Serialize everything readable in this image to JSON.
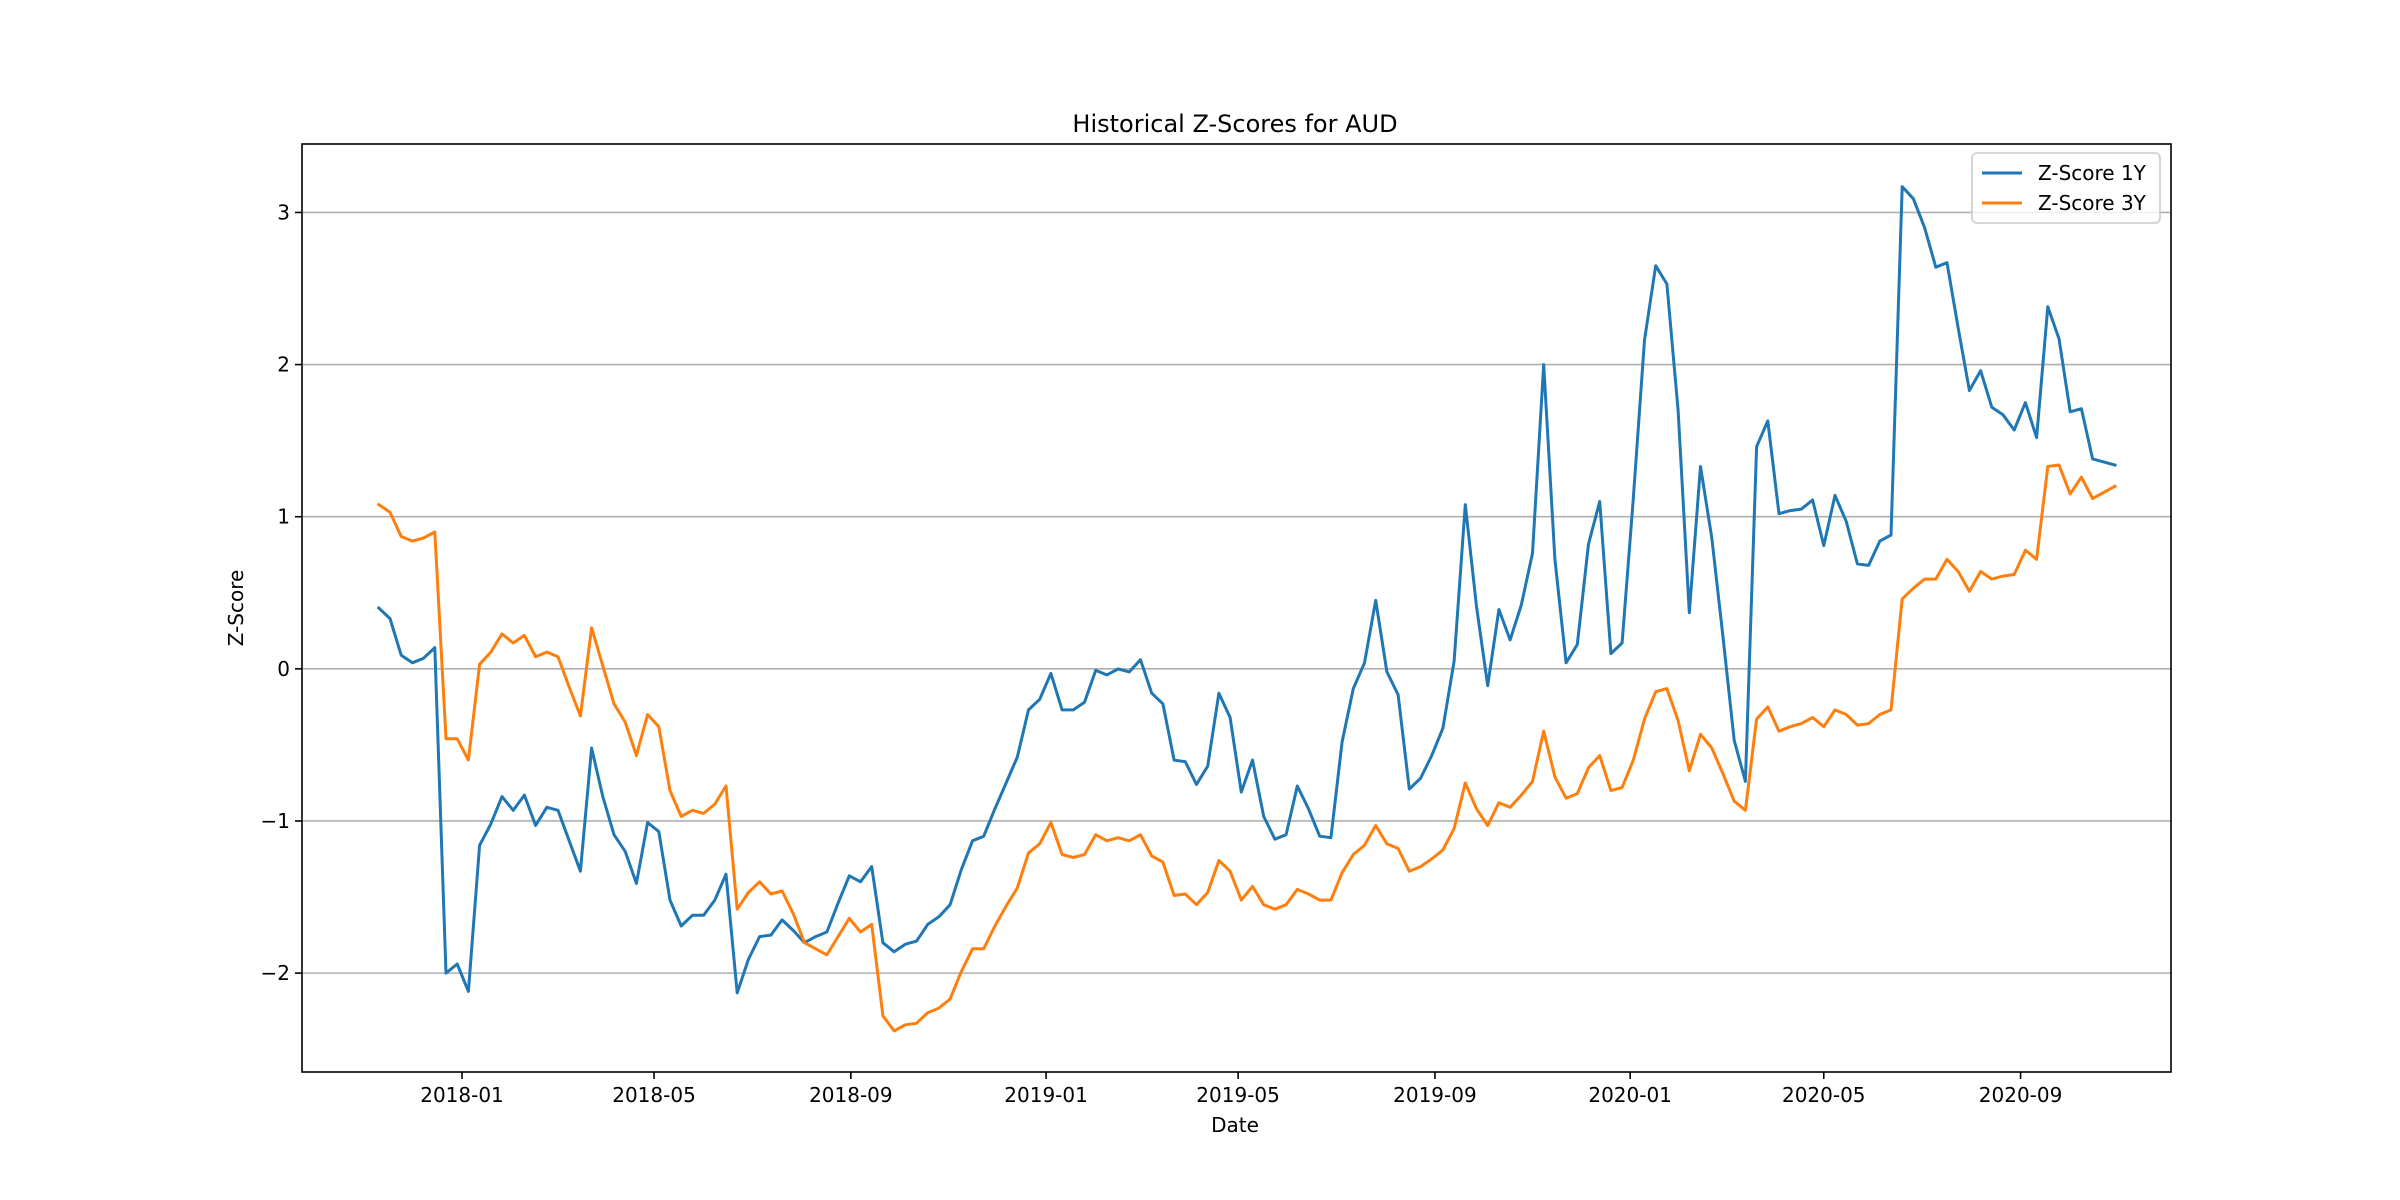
{
  "chart_data": {
    "type": "line",
    "title": "Historical Z-Scores for AUD",
    "xlabel": "Date",
    "ylabel": "Z-Score",
    "xlim": [
      "2017-09-23",
      "2020-12-04"
    ],
    "ylim": [
      -2.65,
      3.45
    ],
    "x_ticks": [
      "2018-01",
      "2018-05",
      "2018-09",
      "2019-01",
      "2019-05",
      "2019-09",
      "2020-01",
      "2020-05",
      "2020-09"
    ],
    "y_ticks": [
      -2,
      -1,
      0,
      1,
      2,
      3
    ],
    "y_tick_labels": [
      "−2",
      "−1",
      "0",
      "1",
      "2",
      "3"
    ],
    "grid": "horizontal",
    "legend_position": "top-right",
    "colors": {
      "z1y": "#1f77b4",
      "z3y": "#ff7f0e",
      "grid": "#b0b0b0"
    },
    "x": [
      "2017-11-10",
      "2017-11-17",
      "2017-11-24",
      "2017-12-01",
      "2017-12-08",
      "2017-12-15",
      "2017-12-22",
      "2017-12-29",
      "2018-01-05",
      "2018-01-12",
      "2018-01-19",
      "2018-01-26",
      "2018-02-02",
      "2018-02-09",
      "2018-02-16",
      "2018-02-23",
      "2018-03-02",
      "2018-03-09",
      "2018-03-16",
      "2018-03-23",
      "2018-03-30",
      "2018-04-06",
      "2018-04-13",
      "2018-04-20",
      "2018-04-27",
      "2018-05-04",
      "2018-05-11",
      "2018-05-18",
      "2018-05-25",
      "2018-06-01",
      "2018-06-08",
      "2018-06-15",
      "2018-06-22",
      "2018-06-29",
      "2018-07-06",
      "2018-07-13",
      "2018-07-20",
      "2018-07-27",
      "2018-08-03",
      "2018-08-10",
      "2018-08-17",
      "2018-08-24",
      "2018-08-31",
      "2018-09-07",
      "2018-09-14",
      "2018-09-21",
      "2018-09-28",
      "2018-10-05",
      "2018-10-12",
      "2018-10-19",
      "2018-10-26",
      "2018-11-02",
      "2018-11-09",
      "2018-11-16",
      "2018-11-23",
      "2018-11-30",
      "2018-12-07",
      "2018-12-14",
      "2018-12-21",
      "2018-12-28",
      "2019-01-04",
      "2019-01-11",
      "2019-01-18",
      "2019-01-25",
      "2019-02-01",
      "2019-02-08",
      "2019-02-15",
      "2019-02-22",
      "2019-03-01",
      "2019-03-08",
      "2019-03-15",
      "2019-03-22",
      "2019-03-29",
      "2019-04-05",
      "2019-04-12",
      "2019-04-19",
      "2019-04-26",
      "2019-05-03",
      "2019-05-10",
      "2019-05-17",
      "2019-05-24",
      "2019-05-31",
      "2019-06-07",
      "2019-06-14",
      "2019-06-21",
      "2019-06-28",
      "2019-07-05",
      "2019-07-12",
      "2019-07-19",
      "2019-07-26",
      "2019-08-02",
      "2019-08-09",
      "2019-08-16",
      "2019-08-23",
      "2019-08-30",
      "2019-09-06",
      "2019-09-13",
      "2019-09-20",
      "2019-09-27",
      "2019-10-04",
      "2019-10-11",
      "2019-10-18",
      "2019-10-25",
      "2019-11-01",
      "2019-11-08",
      "2019-11-15",
      "2019-11-22",
      "2019-11-29",
      "2019-12-06",
      "2019-12-13",
      "2019-12-20",
      "2019-12-27",
      "2020-01-03",
      "2020-01-10",
      "2020-01-17",
      "2020-01-24",
      "2020-01-31",
      "2020-02-07",
      "2020-02-14",
      "2020-02-21",
      "2020-02-28",
      "2020-03-06",
      "2020-03-13",
      "2020-03-20",
      "2020-03-27",
      "2020-04-03",
      "2020-04-10",
      "2020-04-17",
      "2020-04-24",
      "2020-05-01",
      "2020-05-08",
      "2020-05-15",
      "2020-05-22",
      "2020-05-29",
      "2020-06-05",
      "2020-06-12",
      "2020-06-19",
      "2020-06-26",
      "2020-07-03",
      "2020-07-10",
      "2020-07-17",
      "2020-07-24",
      "2020-07-31",
      "2020-08-07",
      "2020-08-14",
      "2020-08-21",
      "2020-08-28",
      "2020-09-04",
      "2020-09-11",
      "2020-09-18",
      "2020-09-25",
      "2020-10-02",
      "2020-10-09",
      "2020-10-16",
      "2020-10-30"
    ],
    "series": [
      {
        "name": "Z-Score 1Y",
        "values": [
          0.4,
          0.33,
          0.09,
          0.04,
          0.07,
          0.14,
          -2.0,
          -1.94,
          -2.12,
          -1.16,
          -1.02,
          -0.84,
          -0.93,
          -0.83,
          -1.03,
          -0.91,
          -0.93,
          -1.13,
          -1.33,
          -0.52,
          -0.84,
          -1.09,
          -1.2,
          -1.41,
          -1.01,
          -1.07,
          -1.52,
          -1.69,
          -1.62,
          -1.62,
          -1.52,
          -1.35,
          -2.13,
          -1.91,
          -1.76,
          -1.75,
          -1.65,
          -1.72,
          -1.8,
          -1.76,
          -1.73,
          -1.54,
          -1.36,
          -1.4,
          -1.3,
          -1.8,
          -1.86,
          -1.81,
          -1.79,
          -1.68,
          -1.63,
          -1.55,
          -1.32,
          -1.13,
          -1.1,
          -0.92,
          -0.75,
          -0.58,
          -0.27,
          -0.2,
          -0.03,
          -0.27,
          -0.27,
          -0.22,
          -0.01,
          -0.04,
          0.0,
          -0.02,
          0.06,
          -0.16,
          -0.23,
          -0.6,
          -0.61,
          -0.76,
          -0.64,
          -0.16,
          -0.32,
          -0.81,
          -0.6,
          -0.97,
          -1.12,
          -1.09,
          -0.77,
          -0.92,
          -1.1,
          -1.11,
          -0.48,
          -0.13,
          0.04,
          0.45,
          -0.02,
          -0.17,
          -0.79,
          -0.72,
          -0.57,
          -0.39,
          0.05,
          1.08,
          0.41,
          -0.11,
          0.39,
          0.19,
          0.42,
          0.76,
          2.0,
          0.72,
          0.04,
          0.16,
          0.82,
          1.1,
          0.1,
          0.17,
          1.12,
          2.16,
          2.65,
          2.53,
          1.7,
          0.37,
          1.33,
          0.86,
          0.21,
          -0.47,
          -0.74,
          1.46,
          1.63,
          1.02,
          1.04,
          1.05,
          1.11,
          0.81,
          1.14,
          0.97,
          0.69,
          0.68,
          0.84,
          0.88,
          3.17,
          3.09,
          2.9,
          2.64,
          2.67,
          2.24,
          1.83,
          1.96,
          1.72,
          1.67,
          1.57,
          1.75,
          1.52,
          2.38,
          2.17,
          1.69,
          1.71,
          1.38,
          1.34
        ]
      },
      {
        "name": "Z-Score 3Y",
        "values": [
          1.08,
          1.03,
          0.87,
          0.84,
          0.86,
          0.9,
          -0.46,
          -0.46,
          -0.6,
          0.03,
          0.11,
          0.23,
          0.17,
          0.22,
          0.08,
          0.11,
          0.08,
          -0.12,
          -0.31,
          0.27,
          0.02,
          -0.23,
          -0.35,
          -0.57,
          -0.3,
          -0.38,
          -0.8,
          -0.97,
          -0.93,
          -0.95,
          -0.89,
          -0.77,
          -1.58,
          -1.47,
          -1.4,
          -1.48,
          -1.46,
          -1.61,
          -1.8,
          -1.84,
          -1.88,
          -1.76,
          -1.64,
          -1.73,
          -1.68,
          -2.28,
          -2.38,
          -2.34,
          -2.33,
          -2.26,
          -2.23,
          -2.17,
          -1.99,
          -1.84,
          -1.84,
          -1.69,
          -1.56,
          -1.44,
          -1.21,
          -1.15,
          -1.01,
          -1.22,
          -1.24,
          -1.22,
          -1.09,
          -1.13,
          -1.11,
          -1.13,
          -1.09,
          -1.23,
          -1.27,
          -1.49,
          -1.48,
          -1.55,
          -1.47,
          -1.26,
          -1.33,
          -1.52,
          -1.43,
          -1.55,
          -1.58,
          -1.55,
          -1.45,
          -1.48,
          -1.52,
          -1.52,
          -1.34,
          -1.22,
          -1.16,
          -1.03,
          -1.15,
          -1.18,
          -1.33,
          -1.3,
          -1.25,
          -1.19,
          -1.05,
          -0.75,
          -0.92,
          -1.03,
          -0.88,
          -0.91,
          -0.83,
          -0.74,
          -0.41,
          -0.71,
          -0.85,
          -0.82,
          -0.65,
          -0.57,
          -0.8,
          -0.78,
          -0.6,
          -0.33,
          -0.15,
          -0.13,
          -0.34,
          -0.67,
          -0.43,
          -0.52,
          -0.69,
          -0.87,
          -0.93,
          -0.33,
          -0.25,
          -0.41,
          -0.38,
          -0.36,
          -0.32,
          -0.38,
          -0.27,
          -0.3,
          -0.37,
          -0.36,
          -0.3,
          -0.27,
          0.46,
          0.53,
          0.59,
          0.59,
          0.72,
          0.64,
          0.51,
          0.64,
          0.59,
          0.61,
          0.62,
          0.78,
          0.72,
          1.33,
          1.34,
          1.15,
          1.26,
          1.12,
          1.2
        ]
      }
    ]
  }
}
